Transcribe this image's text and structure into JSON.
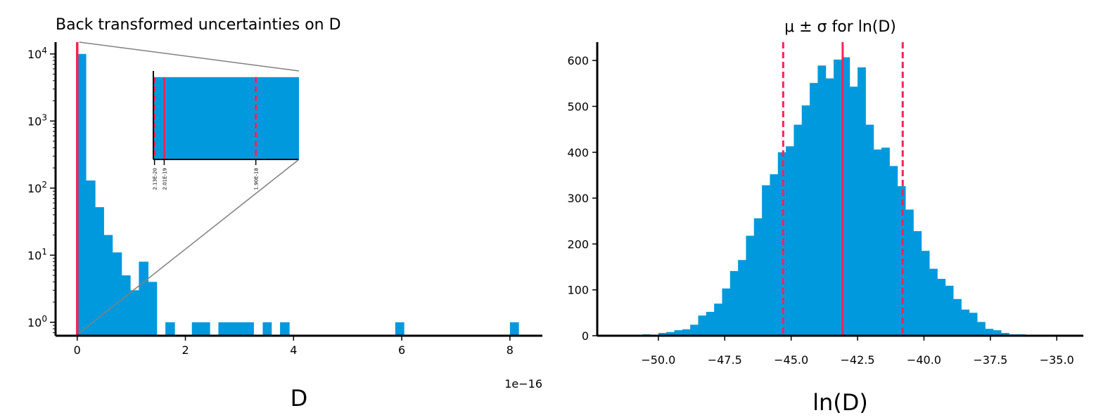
{
  "chart_data": [
    {
      "type": "bar",
      "title": "Back transformed uncertainties on D",
      "xlabel": "D",
      "x_offset_label": "1e−16",
      "yscale": "log",
      "xlim": [
        -4e-17,
        8.6e-16
      ],
      "ylim": [
        0.63,
        15000
      ],
      "xticks": [
        0,
        2e-16,
        4e-16,
        6e-16,
        8e-16
      ],
      "xtick_labels": [
        "0",
        "2",
        "4",
        "6",
        "8"
      ],
      "yticks": [
        1,
        10,
        100,
        1000,
        10000
      ],
      "ytick_labels": [
        "10^0",
        "10^1",
        "10^2",
        "10^3",
        "10^4"
      ],
      "bar_color": "#0099dd",
      "line_color": "#ff2255",
      "bins": [
        {
          "x0": 0.0,
          "x1": 1.6e-17,
          "value": 10000
        },
        {
          "x0": 1.6e-17,
          "x1": 3.3e-17,
          "value": 130
        },
        {
          "x0": 3.3e-17,
          "x1": 4.9e-17,
          "value": 52
        },
        {
          "x0": 4.9e-17,
          "x1": 6.5e-17,
          "value": 20
        },
        {
          "x0": 6.5e-17,
          "x1": 8.2e-17,
          "value": 11
        },
        {
          "x0": 8.2e-17,
          "x1": 9.8e-17,
          "value": 5
        },
        {
          "x0": 9.8e-17,
          "x1": 1.14e-16,
          "value": 3
        },
        {
          "x0": 1.14e-16,
          "x1": 1.31e-16,
          "value": 8
        },
        {
          "x0": 1.31e-16,
          "x1": 1.47e-16,
          "value": 4
        },
        {
          "x0": 1.63e-16,
          "x1": 1.8e-16,
          "value": 1
        },
        {
          "x0": 2.12e-16,
          "x1": 2.45e-16,
          "value": 1
        },
        {
          "x0": 2.61e-16,
          "x1": 3.26e-16,
          "value": 1
        },
        {
          "x0": 3.43e-16,
          "x1": 3.59e-16,
          "value": 1
        },
        {
          "x0": 3.75e-16,
          "x1": 3.92e-16,
          "value": 1
        },
        {
          "x0": 5.88e-16,
          "x1": 6.04e-16,
          "value": 1
        },
        {
          "x0": 8e-16,
          "x1": 8.16e-16,
          "value": 1
        }
      ],
      "vlines": [
        {
          "x": 0.0,
          "style": "solid"
        }
      ],
      "inset": {
        "xlim": [
          0,
          2.7e-18
        ],
        "ylim": [
          0,
          1
        ],
        "bar_level": 0.93,
        "vlines": [
          {
            "x": 2.13e-20,
            "style": "dashed"
          },
          {
            "x": 2.01e-19,
            "style": "solid"
          },
          {
            "x": 1.9e-18,
            "style": "dashed"
          }
        ],
        "tick_labels": [
          "2.13E-20",
          "2.01E-19",
          "1.90E-18"
        ]
      }
    },
    {
      "type": "bar",
      "title": "μ ± σ for ln(D)",
      "xlabel": "ln(D)",
      "xlim": [
        -52.3,
        -34.0
      ],
      "ylim": [
        0,
        640
      ],
      "xticks": [
        -50.0,
        -47.5,
        -45.0,
        -42.5,
        -40.0,
        -37.5,
        -35.0
      ],
      "xtick_labels": [
        "−50.0",
        "−47.5",
        "−45.0",
        "−42.5",
        "−40.0",
        "−37.5",
        "−35.0"
      ],
      "yticks": [
        0,
        100,
        200,
        300,
        400,
        500,
        600
      ],
      "ytick_labels": [
        "0",
        "100",
        "200",
        "300",
        "400",
        "500",
        "600"
      ],
      "bar_color": "#0099dd",
      "line_color": "#ff2255",
      "bin_start": -51.2,
      "bin_width": 0.3,
      "values": [
        0,
        0,
        3,
        2,
        6,
        8,
        12,
        14,
        24,
        44,
        52,
        70,
        103,
        141,
        165,
        218,
        256,
        328,
        352,
        400,
        413,
        460,
        502,
        551,
        589,
        561,
        602,
        607,
        543,
        585,
        460,
        406,
        410,
        370,
        326,
        275,
        228,
        185,
        146,
        124,
        109,
        80,
        57,
        50,
        30,
        15,
        12,
        6,
        3,
        3,
        2,
        0
      ],
      "vlines": [
        {
          "x": -45.3,
          "style": "dashed"
        },
        {
          "x": -43.06,
          "style": "solid"
        },
        {
          "x": -40.8,
          "style": "dashed"
        }
      ]
    }
  ]
}
